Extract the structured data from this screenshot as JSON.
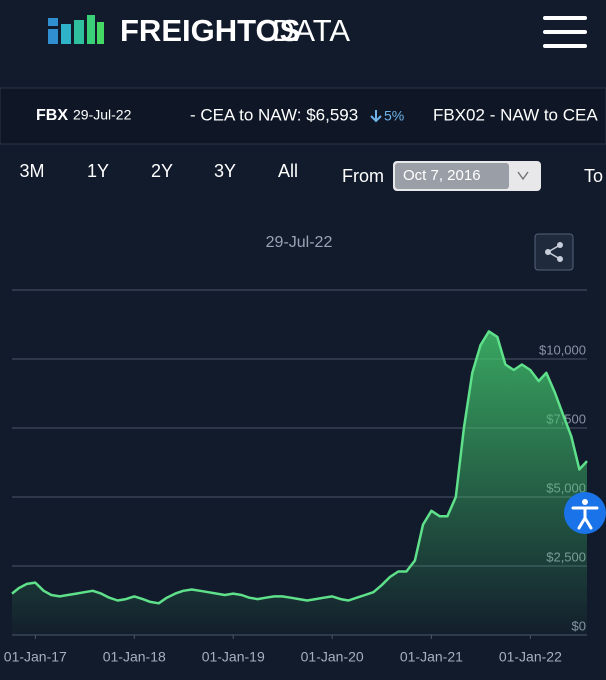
{
  "header": {
    "brand": "FREIGHTOS",
    "brand_suffix": "DATA"
  },
  "ticker": {
    "index": "FBX",
    "date": "29-Jul-22",
    "item1": "- CEA to NAW: $6,593",
    "change": "5%",
    "item2": "FBX02 - NAW to CEA"
  },
  "controls": {
    "ranges": [
      "3M",
      "1Y",
      "2Y",
      "3Y",
      "All"
    ],
    "from_label": "From",
    "from_value": "Oct 7, 2016",
    "to_label": "To"
  },
  "chart_data": {
    "type": "line",
    "title": "29-Jul-22",
    "x": [
      "2016-10-07",
      "2016-11-01",
      "2016-12-01",
      "2017-01-01",
      "2017-02-01",
      "2017-03-01",
      "2017-04-01",
      "2017-05-01",
      "2017-06-01",
      "2017-07-01",
      "2017-08-01",
      "2017-09-01",
      "2017-10-01",
      "2017-11-01",
      "2017-12-01",
      "2018-01-01",
      "2018-02-01",
      "2018-03-01",
      "2018-04-01",
      "2018-05-01",
      "2018-06-01",
      "2018-07-01",
      "2018-08-01",
      "2018-09-01",
      "2018-10-01",
      "2018-11-01",
      "2018-12-01",
      "2019-01-01",
      "2019-02-01",
      "2019-03-01",
      "2019-04-01",
      "2019-05-01",
      "2019-06-01",
      "2019-07-01",
      "2019-08-01",
      "2019-09-01",
      "2019-10-01",
      "2019-11-01",
      "2019-12-01",
      "2020-01-01",
      "2020-02-01",
      "2020-03-01",
      "2020-04-01",
      "2020-05-01",
      "2020-06-01",
      "2020-07-01",
      "2020-08-01",
      "2020-09-01",
      "2020-10-01",
      "2020-11-01",
      "2020-12-01",
      "2021-01-01",
      "2021-02-01",
      "2021-03-01",
      "2021-04-01",
      "2021-05-01",
      "2021-06-01",
      "2021-07-01",
      "2021-08-01",
      "2021-09-01",
      "2021-10-01",
      "2021-11-01",
      "2021-12-01",
      "2022-01-01",
      "2022-02-01",
      "2022-03-01",
      "2022-04-01",
      "2022-05-01",
      "2022-06-01",
      "2022-07-01",
      "2022-07-29"
    ],
    "series": [
      {
        "name": "FBX02",
        "color": "#5fe08a",
        "values": [
          1500,
          1700,
          1850,
          1900,
          1600,
          1450,
          1400,
          1450,
          1500,
          1550,
          1600,
          1500,
          1350,
          1250,
          1300,
          1400,
          1300,
          1200,
          1150,
          1350,
          1500,
          1600,
          1650,
          1600,
          1550,
          1500,
          1450,
          1500,
          1450,
          1350,
          1300,
          1350,
          1400,
          1400,
          1350,
          1300,
          1250,
          1300,
          1350,
          1400,
          1300,
          1250,
          1350,
          1450,
          1550,
          1800,
          2100,
          2300,
          2300,
          2700,
          4000,
          4500,
          4300,
          4300,
          5000,
          7500,
          9500,
          10500,
          11000,
          10800,
          9800,
          9600,
          9800,
          9600,
          9200,
          9500,
          8800,
          8000,
          7200,
          6000,
          6300
        ]
      }
    ],
    "xlim": [
      "2016-10-07",
      "2022-07-29"
    ],
    "xticks": [
      {
        "value": "2017-01-01",
        "label": "01-Jan-17"
      },
      {
        "value": "2018-01-01",
        "label": "01-Jan-18"
      },
      {
        "value": "2019-01-01",
        "label": "01-Jan-19"
      },
      {
        "value": "2020-01-01",
        "label": "01-Jan-20"
      },
      {
        "value": "2021-01-01",
        "label": "01-Jan-21"
      },
      {
        "value": "2022-01-01",
        "label": "01-Jan-22"
      }
    ],
    "ylim": [
      0,
      12500
    ],
    "yticks": [
      {
        "value": 0,
        "label": "$0"
      },
      {
        "value": 2500,
        "label": "$2,500"
      },
      {
        "value": 5000,
        "label": "$5,000"
      },
      {
        "value": 7500,
        "label": "$7,500"
      },
      {
        "value": 10000,
        "label": "$10,000"
      }
    ],
    "grid": true
  }
}
